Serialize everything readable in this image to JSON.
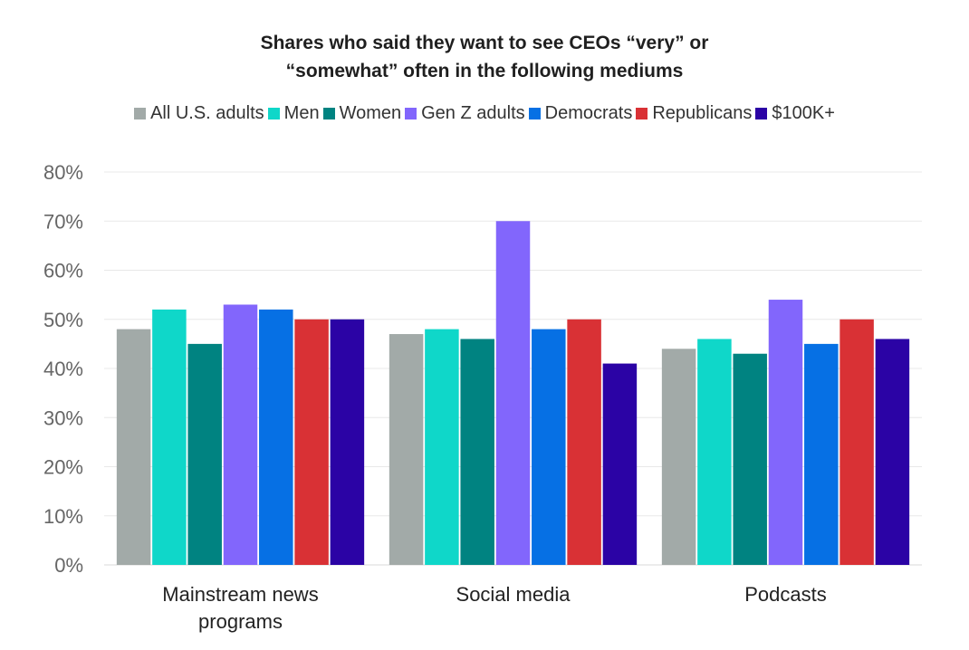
{
  "chart_data": {
    "type": "bar",
    "title_lines": [
      "Shares who said they want to see CEOs “very” or",
      "“somewhat” often in the following mediums"
    ],
    "categories": [
      [
        "Mainstream news",
        "programs"
      ],
      [
        "Social media"
      ],
      [
        "Podcasts"
      ]
    ],
    "series": [
      {
        "name": "All U.S. adults",
        "color": "#a2aaa8",
        "values": [
          48,
          47,
          44
        ]
      },
      {
        "name": "Men",
        "color": "#0fd7c9",
        "values": [
          52,
          48,
          46
        ]
      },
      {
        "name": "Women",
        "color": "#008381",
        "values": [
          45,
          46,
          43
        ]
      },
      {
        "name": "Gen Z adults",
        "color": "#8266fc",
        "values": [
          53,
          70,
          54
        ]
      },
      {
        "name": "Democrats",
        "color": "#0670e4",
        "values": [
          52,
          48,
          45
        ]
      },
      {
        "name": "Republicans",
        "color": "#d93135",
        "values": [
          50,
          50,
          50
        ]
      },
      {
        "name": "$100K+",
        "color": "#2b03a5",
        "values": [
          50,
          41,
          46
        ]
      }
    ],
    "ylim": [
      0,
      80
    ],
    "yticks": [
      "0%",
      "10%",
      "20%",
      "30%",
      "40%",
      "50%",
      "60%",
      "70%",
      "80%"
    ],
    "ytick_values": [
      0,
      10,
      20,
      30,
      40,
      50,
      60,
      70,
      80
    ],
    "grid": true,
    "legend_position": "top"
  }
}
